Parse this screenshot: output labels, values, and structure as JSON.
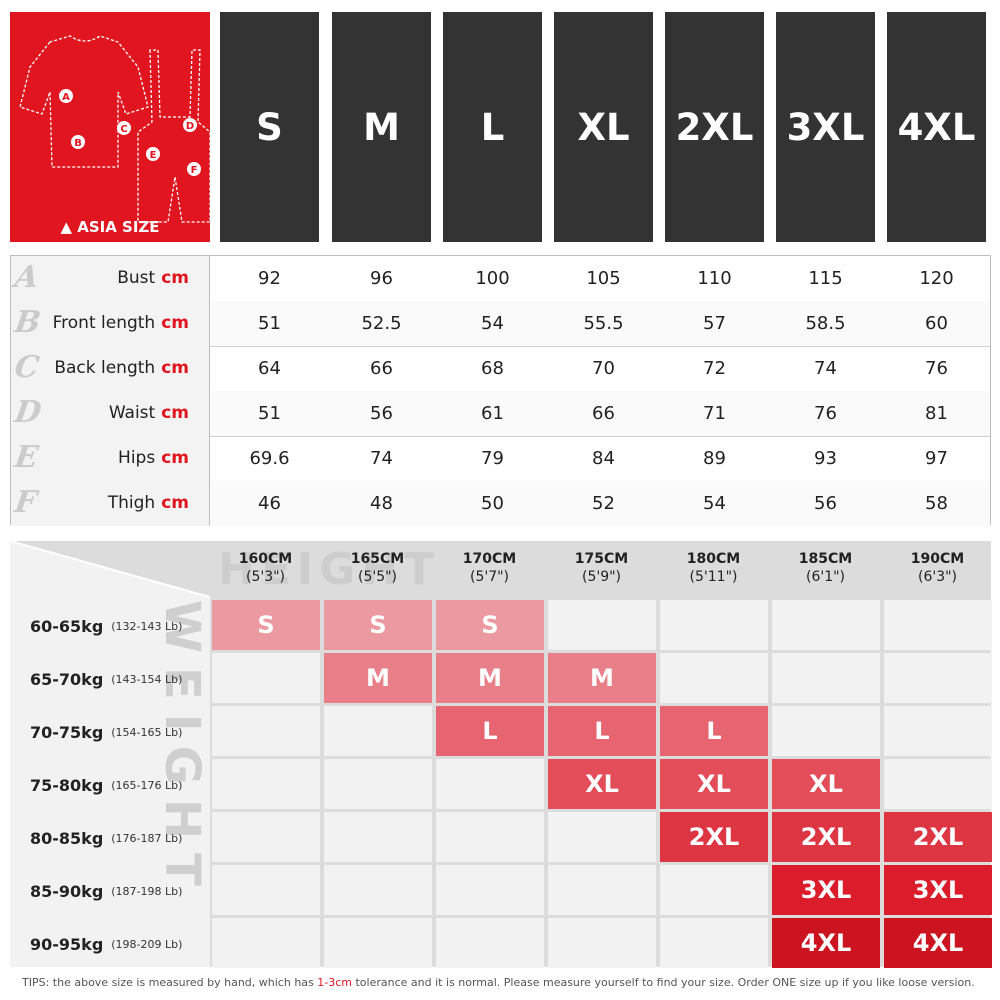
{
  "header": {
    "region_label": "ASIA SIZE",
    "warning_icon": "warning-triangle-icon",
    "diagram_labels": [
      "A",
      "B",
      "C",
      "D",
      "E",
      "F"
    ],
    "sizes": [
      "S",
      "M",
      "L",
      "XL",
      "2XL",
      "3XL",
      "4XL"
    ]
  },
  "measurements": [
    {
      "letter": "A",
      "name": "Bust",
      "unit": "cm",
      "values": [
        "92",
        "96",
        "100",
        "105",
        "110",
        "115",
        "120"
      ]
    },
    {
      "letter": "B",
      "name": "Front length",
      "unit": "cm",
      "values": [
        "51",
        "52.5",
        "54",
        "55.5",
        "57",
        "58.5",
        "60"
      ]
    },
    {
      "letter": "C",
      "name": "Back length",
      "unit": "cm",
      "values": [
        "64",
        "66",
        "68",
        "70",
        "72",
        "74",
        "76"
      ]
    },
    {
      "letter": "D",
      "name": "Waist",
      "unit": "cm",
      "values": [
        "51",
        "56",
        "61",
        "66",
        "71",
        "76",
        "81"
      ]
    },
    {
      "letter": "E",
      "name": "Hips",
      "unit": "cm",
      "values": [
        "69.6",
        "74",
        "79",
        "84",
        "89",
        "93",
        "97"
      ]
    },
    {
      "letter": "F",
      "name": "Thigh",
      "unit": "cm",
      "values": [
        "46",
        "48",
        "50",
        "52",
        "54",
        "56",
        "58"
      ]
    }
  ],
  "height_weight": {
    "height_watermark": "HEIGHT",
    "weight_watermark": "WEIGHT",
    "heights": [
      {
        "cm": "160CM",
        "ft": "(5'3\")"
      },
      {
        "cm": "165CM",
        "ft": "(5'5\")"
      },
      {
        "cm": "170CM",
        "ft": "(5'7\")"
      },
      {
        "cm": "175CM",
        "ft": "(5'9\")"
      },
      {
        "cm": "180CM",
        "ft": "(5'11\")"
      },
      {
        "cm": "185CM",
        "ft": "(6'1\")"
      },
      {
        "cm": "190CM",
        "ft": "(6'3\")"
      }
    ],
    "weights": [
      {
        "kg": "60-65kg",
        "lb": "(132-143 Lb)"
      },
      {
        "kg": "65-70kg",
        "lb": "(143-154 Lb)"
      },
      {
        "kg": "70-75kg",
        "lb": "(154-165 Lb)"
      },
      {
        "kg": "75-80kg",
        "lb": "(165-176 Lb)"
      },
      {
        "kg": "80-85kg",
        "lb": "(176-187 Lb)"
      },
      {
        "kg": "85-90kg",
        "lb": "(187-198 Lb)"
      },
      {
        "kg": "90-95kg",
        "lb": "(198-209 Lb)"
      }
    ],
    "grid": [
      [
        "S",
        "S",
        "S",
        "",
        "",
        "",
        ""
      ],
      [
        "",
        "M",
        "M",
        "M",
        "",
        "",
        ""
      ],
      [
        "",
        "",
        "L",
        "L",
        "L",
        "",
        ""
      ],
      [
        "",
        "",
        "",
        "XL",
        "XL",
        "XL",
        ""
      ],
      [
        "",
        "",
        "",
        "",
        "2XL",
        "2XL",
        "2XL"
      ],
      [
        "",
        "",
        "",
        "",
        "",
        "3XL",
        "3XL"
      ],
      [
        "",
        "",
        "",
        "",
        "",
        "4XL",
        "4XL"
      ]
    ],
    "size_colors": {
      "S": "#ec9aa1",
      "M": "#e97f88",
      "L": "#e66570",
      "XL": "#e24d59",
      "2XL": "#de3542",
      "3XL": "#db1d2b",
      "4XL": "#cc1420"
    }
  },
  "tips": {
    "prefix": "TIPS:",
    "before": " the above size is measured by hand, which has ",
    "highlight": "1-3cm",
    "after": " tolerance and it is normal. Please measure yourself to find your size. Order ONE size up if you like loose version."
  },
  "colors": {
    "brand_red": "#e1151f",
    "header_dark": "#333333"
  }
}
